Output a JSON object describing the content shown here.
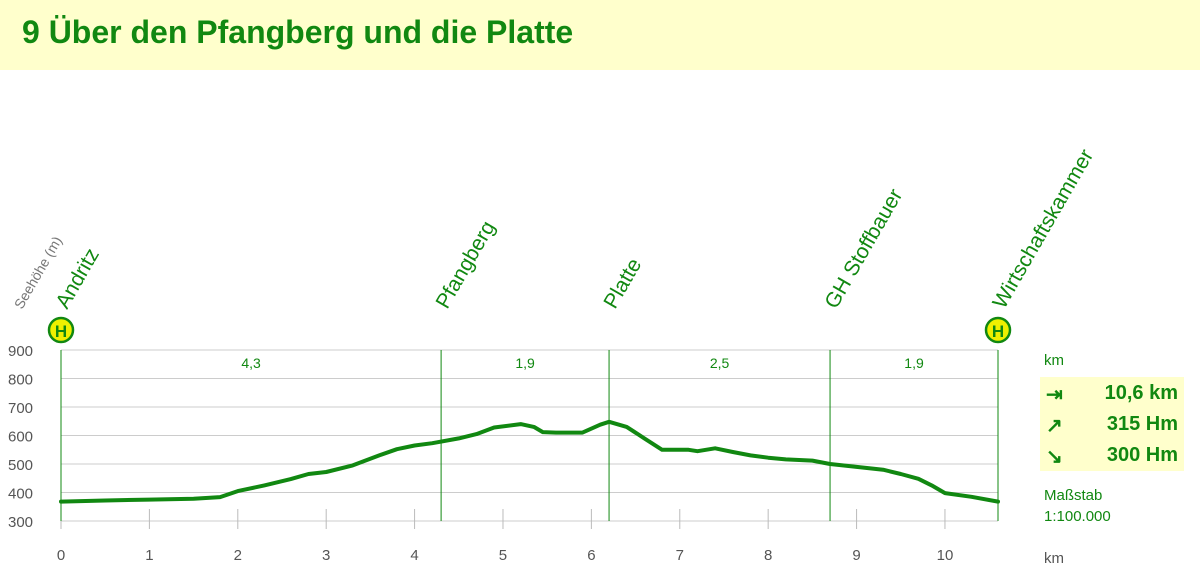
{
  "page": {
    "title": "9 Über den Pfangberg und die Platte"
  },
  "colors": {
    "accent": "#118811",
    "header_bg": "#ffffcc",
    "stop_marker": "#eef000",
    "grid": "#cccccc"
  },
  "side": {
    "km_label": "km",
    "scale_label": "Maßstab",
    "scale_value": "1:100.000",
    "distance": {
      "icon": "arrow-right-from-bar-icon",
      "value": "10,6 km"
    },
    "ascent": {
      "icon": "arrow-up-right-icon",
      "value": "315 Hm"
    },
    "descent": {
      "icon": "arrow-down-right-icon",
      "value": "300 Hm"
    }
  },
  "chart_data": {
    "type": "area",
    "ylabel": "Seehöhe (m)",
    "xlabel": "km",
    "xlim": [
      0,
      10.6
    ],
    "ylim": [
      300,
      900
    ],
    "xticks": [
      "0",
      "1",
      "2",
      "3",
      "4",
      "5",
      "6",
      "7",
      "8",
      "9",
      "10"
    ],
    "yticks": [
      "300",
      "400",
      "500",
      "600",
      "700",
      "800",
      "900"
    ],
    "profile": {
      "x": [
        0,
        0.5,
        1,
        1.5,
        1.8,
        2,
        2.3,
        2.6,
        2.8,
        3,
        3.3,
        3.6,
        3.8,
        4,
        4.2,
        4.5,
        4.7,
        4.9,
        5.2,
        5.35,
        5.45,
        5.6,
        5.9,
        6.1,
        6.2,
        6.4,
        6.6,
        6.8,
        7.1,
        7.2,
        7.4,
        7.6,
        7.8,
        8,
        8.2,
        8.5,
        8.7,
        9,
        9.3,
        9.5,
        9.7,
        9.85,
        10,
        10.3,
        10.6
      ],
      "y": [
        368,
        372,
        375,
        378,
        384,
        405,
        425,
        447,
        465,
        472,
        495,
        530,
        552,
        565,
        573,
        590,
        605,
        628,
        640,
        630,
        612,
        610,
        610,
        638,
        648,
        630,
        590,
        550,
        550,
        545,
        555,
        542,
        530,
        522,
        516,
        512,
        500,
        490,
        480,
        465,
        448,
        425,
        398,
        385,
        368
      ]
    },
    "waypoints": [
      {
        "name": "Andritz",
        "km": 0,
        "bus_stop": true,
        "stop_symbol": "H"
      },
      {
        "name": "Pfangberg",
        "km": 4.3,
        "bus_stop": false
      },
      {
        "name": "Platte",
        "km": 6.2,
        "bus_stop": false
      },
      {
        "name": "GH Stoffbauer",
        "km": 8.7,
        "bus_stop": false
      },
      {
        "name": "Wirtschaftskammer",
        "km": 10.6,
        "bus_stop": true,
        "stop_symbol": "H"
      }
    ],
    "segments": [
      {
        "label": "4,3",
        "from": 0,
        "to": 4.3
      },
      {
        "label": "1,9",
        "from": 4.3,
        "to": 6.2
      },
      {
        "label": "2,5",
        "from": 6.2,
        "to": 8.7
      },
      {
        "label": "1,9",
        "from": 8.7,
        "to": 10.6
      }
    ]
  }
}
